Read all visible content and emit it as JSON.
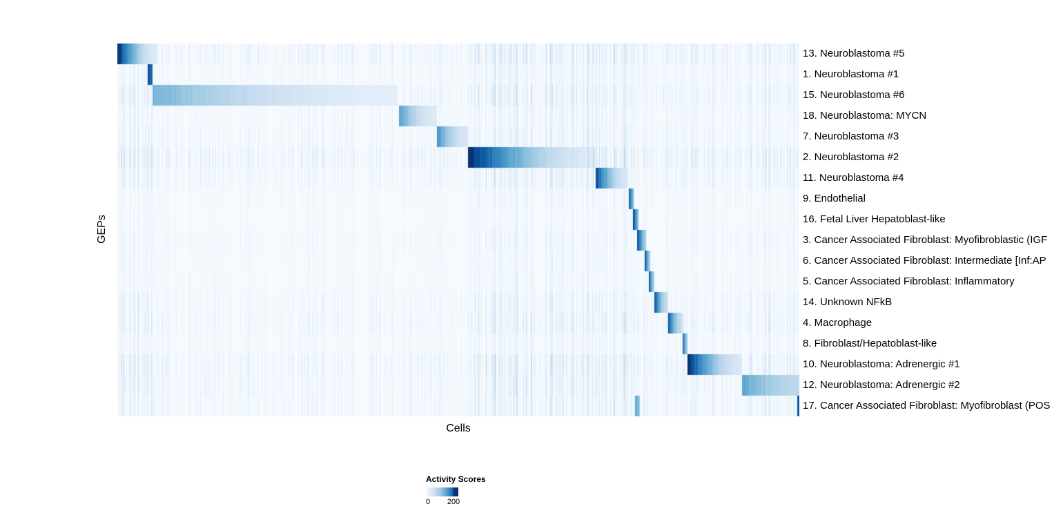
{
  "figure": {
    "background": "#ffffff"
  },
  "chart_data": {
    "type": "heatmap",
    "title": "",
    "xlabel": "Cells",
    "ylabel": "GEPs",
    "value_label": "Activity Scores",
    "value_range": [
      0,
      200
    ],
    "colormap": "Blues",
    "colormap_min_hex": "#f7fbff",
    "colormap_max_hex": "#08306b",
    "legend_position": "bottom",
    "grid": false,
    "rows": [
      {
        "label": "13. Neuroblastoma #5",
        "noise": 0.6,
        "blocks": [
          {
            "start": 0.0,
            "end": 0.058,
            "peak": 200,
            "tail": 25
          }
        ]
      },
      {
        "label": "1. Neuroblastoma #1",
        "noise": 0.35,
        "blocks": [
          {
            "start": 0.044,
            "end": 0.051,
            "peak": 200,
            "tail": 150
          }
        ]
      },
      {
        "label": "15. Neuroblastoma #6",
        "noise": 0.55,
        "blocks": [
          {
            "start": 0.051,
            "end": 0.41,
            "peak": 95,
            "tail": 20
          }
        ]
      },
      {
        "label": "18. Neuroblastoma: MYCN",
        "noise": 0.35,
        "blocks": [
          {
            "start": 0.412,
            "end": 0.468,
            "peak": 115,
            "tail": 25
          }
        ]
      },
      {
        "label": "7. Neuroblastoma #3",
        "noise": 0.4,
        "blocks": [
          {
            "start": 0.468,
            "end": 0.514,
            "peak": 125,
            "tail": 30
          }
        ]
      },
      {
        "label": "2. Neuroblastoma #2",
        "noise": 0.7,
        "blocks": [
          {
            "start": 0.514,
            "end": 0.701,
            "peak": 200,
            "tail": 25
          }
        ]
      },
      {
        "label": "11. Neuroblastoma #4",
        "noise": 0.45,
        "blocks": [
          {
            "start": 0.701,
            "end": 0.748,
            "peak": 180,
            "tail": 30
          }
        ]
      },
      {
        "label": "9. Endothelial",
        "noise": 0.25,
        "blocks": [
          {
            "start": 0.749,
            "end": 0.757,
            "peak": 190,
            "tail": 90
          }
        ]
      },
      {
        "label": "16. Fetal Liver Hepatoblast-like",
        "noise": 0.22,
        "blocks": [
          {
            "start": 0.756,
            "end": 0.764,
            "peak": 190,
            "tail": 90
          }
        ]
      },
      {
        "label": "3. Cancer Associated Fibroblast: Myofibroblastic (IGF",
        "noise": 0.3,
        "blocks": [
          {
            "start": 0.762,
            "end": 0.775,
            "peak": 190,
            "tail": 70
          }
        ]
      },
      {
        "label": "6. Cancer Associated Fibroblast: Intermediate [Inf:AP",
        "noise": 0.25,
        "blocks": [
          {
            "start": 0.773,
            "end": 0.781,
            "peak": 180,
            "tail": 70
          }
        ]
      },
      {
        "label": "5. Cancer Associated Fibroblast: Inflammatory",
        "noise": 0.25,
        "blocks": [
          {
            "start": 0.779,
            "end": 0.787,
            "peak": 180,
            "tail": 70
          }
        ]
      },
      {
        "label": "14. Unknown NFkB",
        "noise": 0.4,
        "blocks": [
          {
            "start": 0.787,
            "end": 0.807,
            "peak": 180,
            "tail": 45
          }
        ]
      },
      {
        "label": "4. Macrophage",
        "noise": 0.5,
        "blocks": [
          {
            "start": 0.807,
            "end": 0.828,
            "peak": 180,
            "tail": 45
          }
        ]
      },
      {
        "label": "8. Fibroblast/Hepatoblast-like",
        "noise": 0.3,
        "blocks": [
          {
            "start": 0.828,
            "end": 0.836,
            "peak": 180,
            "tail": 70
          }
        ]
      },
      {
        "label": "10. Neuroblastoma: Adrenergic #1",
        "noise": 0.6,
        "blocks": [
          {
            "start": 0.836,
            "end": 0.915,
            "peak": 200,
            "tail": 30
          }
        ]
      },
      {
        "label": "12. Neuroblastoma: Adrenergic #2",
        "noise": 0.5,
        "blocks": [
          {
            "start": 0.915,
            "end": 1.0,
            "peak": 110,
            "tail": 55
          }
        ]
      },
      {
        "label": "17. Cancer Associated Fibroblast: Myofibroblast (POS",
        "noise": 0.45,
        "blocks": [
          {
            "start": 0.759,
            "end": 0.766,
            "peak": 110,
            "tail": 80
          },
          {
            "start": 0.996,
            "end": 1.0,
            "peak": 170,
            "tail": 170
          }
        ]
      }
    ]
  }
}
